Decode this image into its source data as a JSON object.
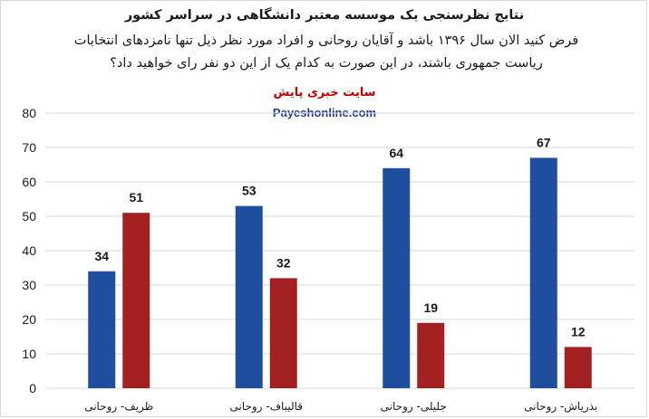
{
  "header": {
    "title": "نتایج نظرسنجی یک موسسه معتبر دانشگاهی در سراسر کشور",
    "subtitle": "فرض کنید الان سال ۱۳۹۶ باشد و آقایان روحانی و افراد مورد نظر ذیل تنها نامزدهای انتخابات ریاست جمهوری باشند، در این صورت به کدام یک از این دو نفر رای خواهید داد؟",
    "source": "سایت خبری پایش",
    "site": "Payeshonline.com"
  },
  "colors": {
    "blue": "#1f4e9e",
    "red": "#a32020",
    "grid": "#d9d9d9"
  },
  "chart_data": {
    "type": "bar",
    "categories": [
      "ظریف- روحانی",
      "قالیباف- روحانی",
      "جلیلی- روحانی",
      "بذریاش- روحانی"
    ],
    "series": [
      {
        "values": [
          34,
          53,
          64,
          67
        ]
      },
      {
        "values": [
          51,
          32,
          19,
          12
        ]
      }
    ],
    "ylim": [
      0,
      80
    ],
    "yticks": [
      0,
      10,
      20,
      30,
      40,
      50,
      60,
      70,
      80
    ],
    "grid": true,
    "data_labels": true
  }
}
